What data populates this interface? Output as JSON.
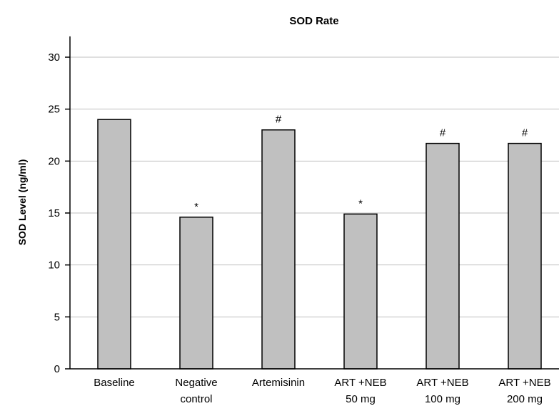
{
  "chart_data": {
    "type": "bar",
    "title": "SOD Rate",
    "xlabel": "",
    "ylabel": "SOD Level (ng/ml)",
    "ylim": [
      0,
      32
    ],
    "yticks": [
      0,
      5,
      10,
      15,
      20,
      25,
      30
    ],
    "grid": true,
    "categories": [
      [
        "Baseline"
      ],
      [
        "Negative",
        "control"
      ],
      [
        "Artemisinin"
      ],
      [
        "ART +NEB",
        "50 mg"
      ],
      [
        "ART +NEB",
        "100 mg"
      ],
      [
        "ART +NEB",
        "200 mg"
      ]
    ],
    "values": [
      24.0,
      14.6,
      23.0,
      14.9,
      21.7,
      21.7
    ],
    "annotations": [
      "",
      "*",
      "#",
      "*",
      "#",
      "#"
    ],
    "colors": {
      "bar_fill": "#c0c0c0",
      "bar_stroke": "#000000",
      "grid": "#bfbfbf",
      "axis": "#000000"
    }
  }
}
